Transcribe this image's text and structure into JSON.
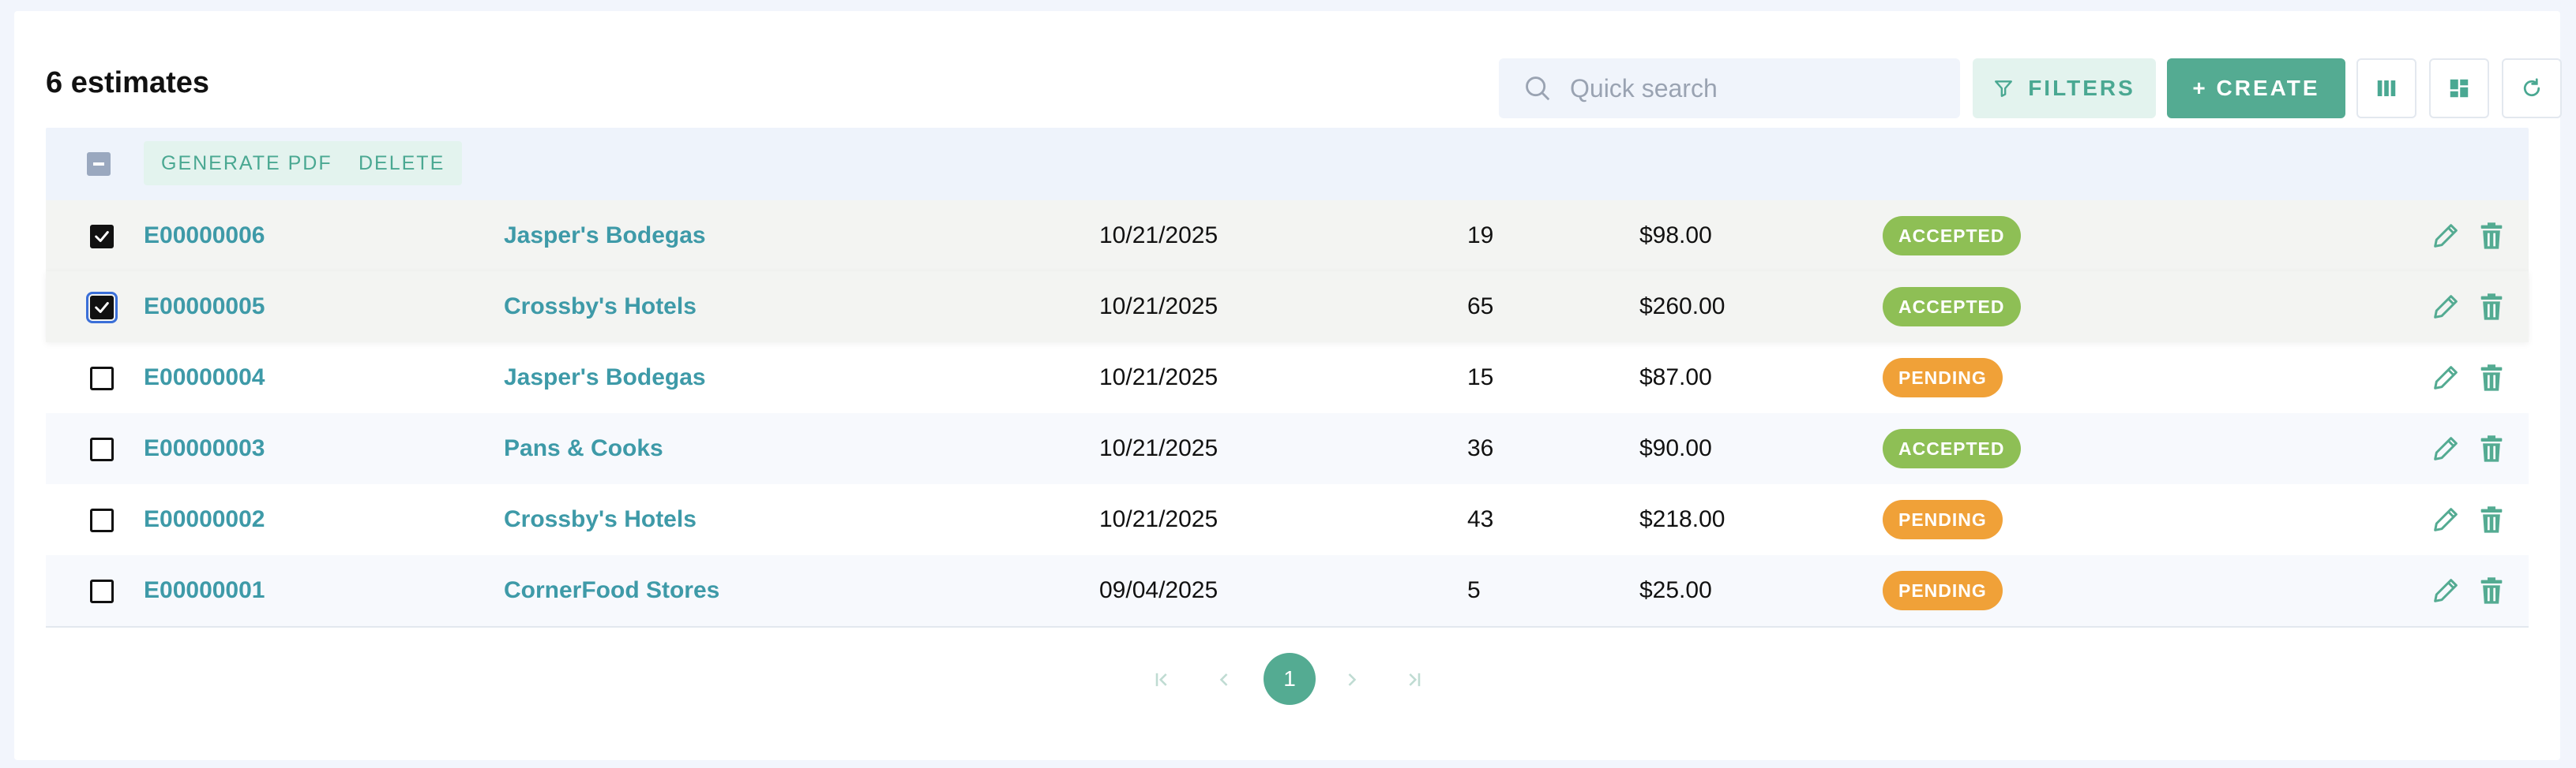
{
  "header": {
    "title": "6 estimates",
    "search_placeholder": "Quick search",
    "filters_label": "FILTERS",
    "create_label": "+ CREATE",
    "icons": [
      "search-icon",
      "filter-icon",
      "columns-icon",
      "dashboard-icon",
      "refresh-icon"
    ]
  },
  "bulk": {
    "generate_pdf_label": "GENERATE PDF",
    "delete_label": "DELETE"
  },
  "rows": [
    {
      "number": "E00000006",
      "customer": "Jasper's Bodegas",
      "date": "10/21/2025",
      "qty": "19",
      "amount": "$98.00",
      "status": "ACCEPTED",
      "checked": true
    },
    {
      "number": "E00000005",
      "customer": "Crossby's Hotels",
      "date": "10/21/2025",
      "qty": "65",
      "amount": "$260.00",
      "status": "ACCEPTED",
      "checked": true
    },
    {
      "number": "E00000004",
      "customer": "Jasper's Bodegas",
      "date": "10/21/2025",
      "qty": "15",
      "amount": "$87.00",
      "status": "PENDING",
      "checked": false
    },
    {
      "number": "E00000003",
      "customer": "Pans & Cooks",
      "date": "10/21/2025",
      "qty": "36",
      "amount": "$90.00",
      "status": "ACCEPTED",
      "checked": false
    },
    {
      "number": "E00000002",
      "customer": "Crossby's Hotels",
      "date": "10/21/2025",
      "qty": "43",
      "amount": "$218.00",
      "status": "PENDING",
      "checked": false
    },
    {
      "number": "E00000001",
      "customer": "CornerFood Stores",
      "date": "09/04/2025",
      "qty": "5",
      "amount": "$25.00",
      "status": "PENDING",
      "checked": false
    }
  ],
  "pagination": {
    "current_page": "1"
  },
  "colors": {
    "accent": "#54ab92",
    "link": "#3e9aa8",
    "accepted": "#8ebf55",
    "pending": "#f0a138"
  }
}
